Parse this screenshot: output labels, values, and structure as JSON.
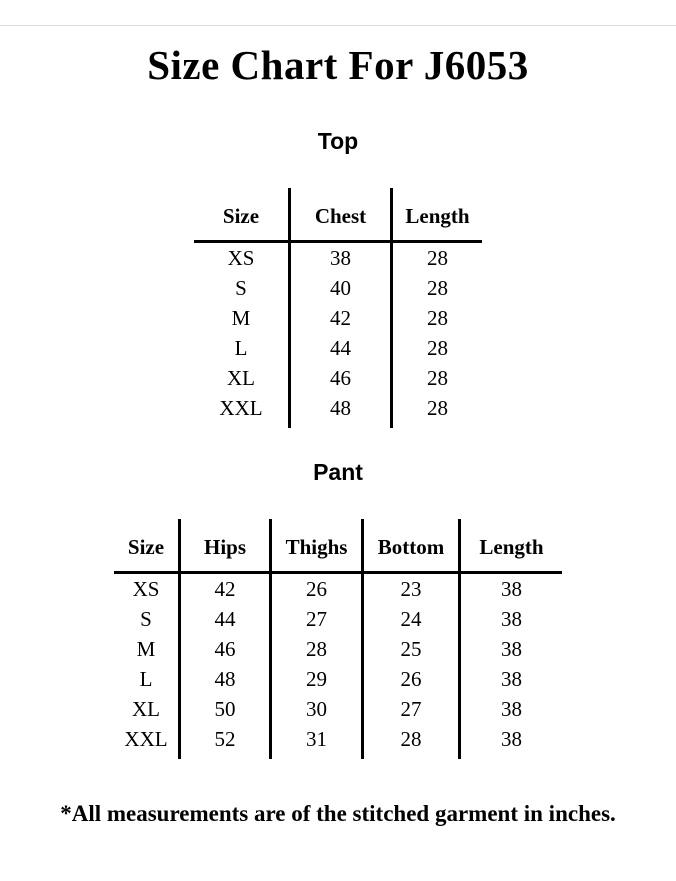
{
  "page": {
    "title": "Size Chart For J6053",
    "footnote": "*All measurements are of the stitched garment in inches.",
    "units": "inches"
  },
  "colors": {
    "text": "#000000",
    "background": "#ffffff",
    "table_border": "#000000",
    "top_divider": "#dedede"
  },
  "chart_data": [
    {
      "type": "table",
      "section": "Top",
      "columns": [
        "Size",
        "Chest",
        "Length"
      ],
      "rows": [
        [
          "XS",
          "38",
          "28"
        ],
        [
          "S",
          "40",
          "28"
        ],
        [
          "M",
          "42",
          "28"
        ],
        [
          "L",
          "44",
          "28"
        ],
        [
          "XL",
          "46",
          "28"
        ],
        [
          "XXL",
          "48",
          "28"
        ]
      ]
    },
    {
      "type": "table",
      "section": "Pant",
      "columns": [
        "Size",
        "Hips",
        "Thighs",
        "Bottom",
        "Length"
      ],
      "rows": [
        [
          "XS",
          "42",
          "26",
          "23",
          "38"
        ],
        [
          "S",
          "44",
          "27",
          "24",
          "38"
        ],
        [
          "M",
          "46",
          "28",
          "25",
          "38"
        ],
        [
          "L",
          "48",
          "29",
          "26",
          "38"
        ],
        [
          "XL",
          "50",
          "30",
          "27",
          "38"
        ],
        [
          "XXL",
          "52",
          "31",
          "28",
          "38"
        ]
      ]
    }
  ]
}
